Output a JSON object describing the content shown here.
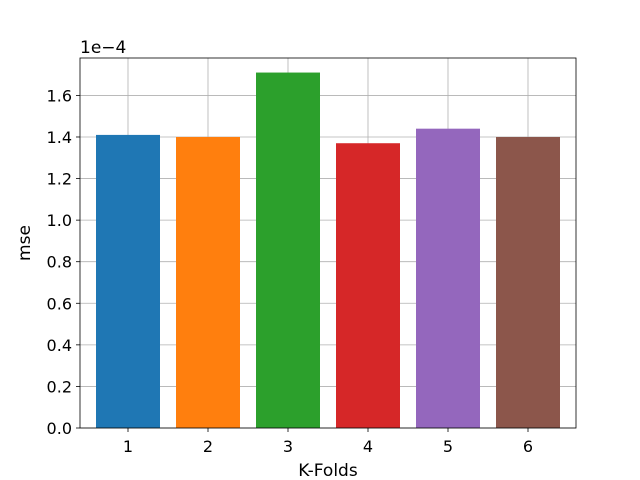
{
  "chart_data": {
    "type": "bar",
    "categories": [
      "1",
      "2",
      "3",
      "4",
      "5",
      "6"
    ],
    "values": [
      0.000141,
      0.00014,
      0.000171,
      0.000137,
      0.000144,
      0.00014
    ],
    "colors": [
      "#1f77b4",
      "#ff7f0e",
      "#2ca02c",
      "#d62728",
      "#9467bd",
      "#8c564b"
    ],
    "xlabel": "K-Folds",
    "ylabel": "mse",
    "offset_label": "1e−4",
    "ylim": [
      0,
      0.000178
    ],
    "yticks": [
      0,
      2e-05,
      4e-05,
      6e-05,
      8e-05,
      0.0001,
      0.00012,
      0.00014,
      0.00016
    ],
    "ytick_labels": [
      "0.0",
      "0.2",
      "0.4",
      "0.6",
      "0.8",
      "1.0",
      "1.2",
      "1.4",
      "1.6"
    ],
    "grid": true,
    "legend": "none"
  }
}
